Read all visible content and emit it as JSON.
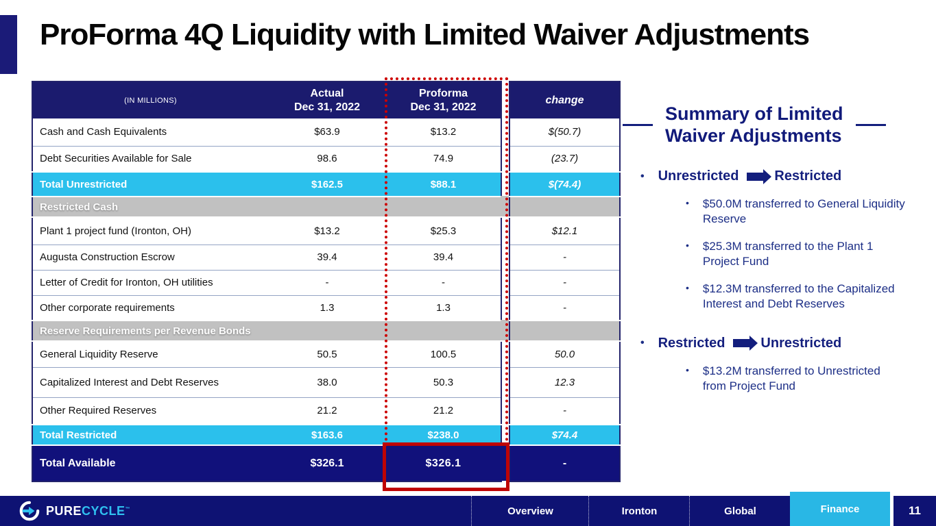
{
  "title": "ProForma 4Q Liquidity with Limited Waiver Adjustments",
  "table": {
    "unit_label": "(IN MILLIONS)",
    "col_headers": {
      "actual_line1": "Actual",
      "actual_line2": "Dec 31, 2022",
      "proforma_line1": "Proforma",
      "proforma_line2": "Dec 31, 2022",
      "change": "change"
    },
    "rows": [
      {
        "type": "data",
        "label": "Cash and Cash Equivalents",
        "actual": "$63.9",
        "proforma": "$13.2",
        "change": "$(50.7)"
      },
      {
        "type": "data",
        "label": "Debt Securities Available for Sale",
        "actual": "98.6",
        "proforma": "74.9",
        "change": "(23.7)"
      },
      {
        "type": "total-cyan",
        "label": "Total Unrestricted",
        "actual": "$162.5",
        "proforma": "$88.1",
        "change": "$(74.4)"
      },
      {
        "type": "section",
        "label": "Restricted Cash",
        "actual": "",
        "proforma": "",
        "change": ""
      },
      {
        "type": "data",
        "label": "Plant 1 project fund (Ironton, OH)",
        "actual": "$13.2",
        "proforma": "$25.3",
        "change": "$12.1"
      },
      {
        "type": "data",
        "label": "Augusta Construction Escrow",
        "actual": "39.4",
        "proforma": "39.4",
        "change": "-"
      },
      {
        "type": "data",
        "label": "Letter of Credit for Ironton, OH utilities",
        "actual": "-",
        "proforma": "-",
        "change": "-"
      },
      {
        "type": "data",
        "label": "Other corporate requirements",
        "actual": "1.3",
        "proforma": "1.3",
        "change": "-"
      },
      {
        "type": "section",
        "label": "Reserve Requirements per Revenue Bonds",
        "actual": "",
        "proforma": "",
        "change": ""
      },
      {
        "type": "data",
        "label": "General Liquidity Reserve",
        "actual": "50.5",
        "proforma": "100.5",
        "change": "50.0"
      },
      {
        "type": "data",
        "label": "Capitalized Interest and Debt Reserves",
        "actual": "38.0",
        "proforma": "50.3",
        "change": "12.3"
      },
      {
        "type": "data",
        "label": "Other Required Reserves",
        "actual": "21.2",
        "proforma": "21.2",
        "change": "-"
      },
      {
        "type": "total-cyan",
        "label": "Total Restricted",
        "actual": "$163.6",
        "proforma": "$238.0",
        "change": "$74.4"
      },
      {
        "type": "total-navy",
        "label": "Total Available",
        "actual": "$326.1",
        "proforma": "$326.1",
        "change": "-"
      }
    ]
  },
  "summary": {
    "heading_line1": "Summary of Limited",
    "heading_line2": "Waiver Adjustments",
    "groups": [
      {
        "from": "Unrestricted",
        "to": "Restricted",
        "items": [
          "$50.0M transferred to General Liquidity Reserve",
          "$25.3M transferred to the Plant 1 Project Fund",
          "$12.3M transferred to the Capitalized Interest and Debt Reserves"
        ]
      },
      {
        "from": "Restricted",
        "to": "Unrestricted",
        "items": [
          "$13.2M transferred to Unrestricted from Project Fund"
        ]
      }
    ]
  },
  "footer": {
    "brand_part1": "PURE",
    "brand_part2": "CYCLE",
    "brand_tm": "™",
    "tabs": [
      {
        "label": "Overview",
        "active": false
      },
      {
        "label": "Ironton",
        "active": false
      },
      {
        "label": "Global",
        "active": false
      },
      {
        "label": "Finance",
        "active": true
      }
    ],
    "page_number": "11"
  },
  "colors": {
    "table_header_navy": "#1b1b6e",
    "total_row_navy": "#11117b",
    "total_row_cyan": "#2bc0ec",
    "section_gray": "#c1c1c1",
    "highlight_red": "#cc0000",
    "footer_navy": "#0e1273",
    "active_tab_cyan": "#29b7e5",
    "summary_text_navy": "#1c2e86"
  }
}
